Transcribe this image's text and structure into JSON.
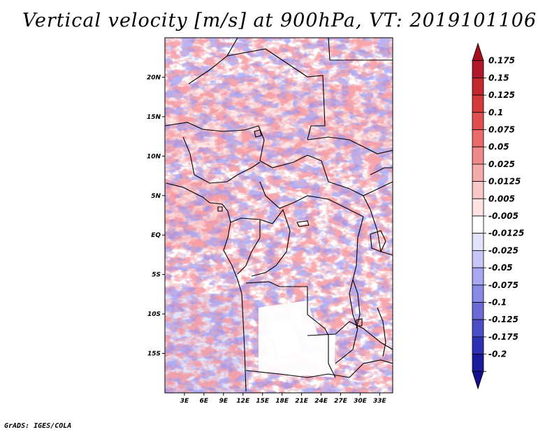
{
  "title": "Vertical velocity [m/s] at 900hPa, VT: 2019101106",
  "footer": "GrADS: IGES/COLA",
  "map": {
    "lon_range": [
      0,
      35
    ],
    "lat_range": [
      -20,
      25
    ],
    "y_ticks": [
      {
        "lat": 20,
        "label": "20N"
      },
      {
        "lat": 15,
        "label": "15N"
      },
      {
        "lat": 10,
        "label": "10N"
      },
      {
        "lat": 5,
        "label": "5N"
      },
      {
        "lat": 0,
        "label": "EQ"
      },
      {
        "lat": -5,
        "label": "5S"
      },
      {
        "lat": -10,
        "label": "10S"
      },
      {
        "lat": -15,
        "label": "15S"
      }
    ],
    "x_ticks": [
      {
        "lon": 3,
        "label": "3E"
      },
      {
        "lon": 6,
        "label": "6E"
      },
      {
        "lon": 9,
        "label": "9E"
      },
      {
        "lon": 12,
        "label": "12E"
      },
      {
        "lon": 15,
        "label": "15E"
      },
      {
        "lon": 18,
        "label": "18E"
      },
      {
        "lon": 21,
        "label": "21E"
      },
      {
        "lon": 24,
        "label": "24E"
      },
      {
        "lon": 27,
        "label": "27E"
      },
      {
        "lon": 30,
        "label": "30E"
      },
      {
        "lon": 33,
        "label": "33E"
      }
    ]
  },
  "colorbar": {
    "levels": [
      {
        "label": "0.175",
        "color": "#b2182b"
      },
      {
        "label": "0.15",
        "color": "#c1272d"
      },
      {
        "label": "0.125",
        "color": "#d23a3a"
      },
      {
        "label": "0.1",
        "color": "#e05050"
      },
      {
        "label": "0.075",
        "color": "#ea6b6b"
      },
      {
        "label": "0.05",
        "color": "#f08a8a"
      },
      {
        "label": "0.025",
        "color": "#f5aaaa"
      },
      {
        "label": "0.0125",
        "color": "#f9c8c8"
      },
      {
        "label": "0.005",
        "color": "#fde3e3"
      },
      {
        "label": "-0.005",
        "color": "#ffffff"
      },
      {
        "label": "-0.0125",
        "color": "#e3e3fb"
      },
      {
        "label": "-0.025",
        "color": "#c6c6f6"
      },
      {
        "label": "-0.05",
        "color": "#a8a8f0"
      },
      {
        "label": "-0.075",
        "color": "#8a8ae6"
      },
      {
        "label": "-0.1",
        "color": "#6b6bd8"
      },
      {
        "label": "-0.125",
        "color": "#4d4dc8"
      },
      {
        "label": "-0.175",
        "color": "#3030b4"
      },
      {
        "label": "-0.2",
        "color": "#1a1a9a"
      }
    ],
    "top_color": "#a50f1e",
    "bottom_color": "#140f8c"
  }
}
